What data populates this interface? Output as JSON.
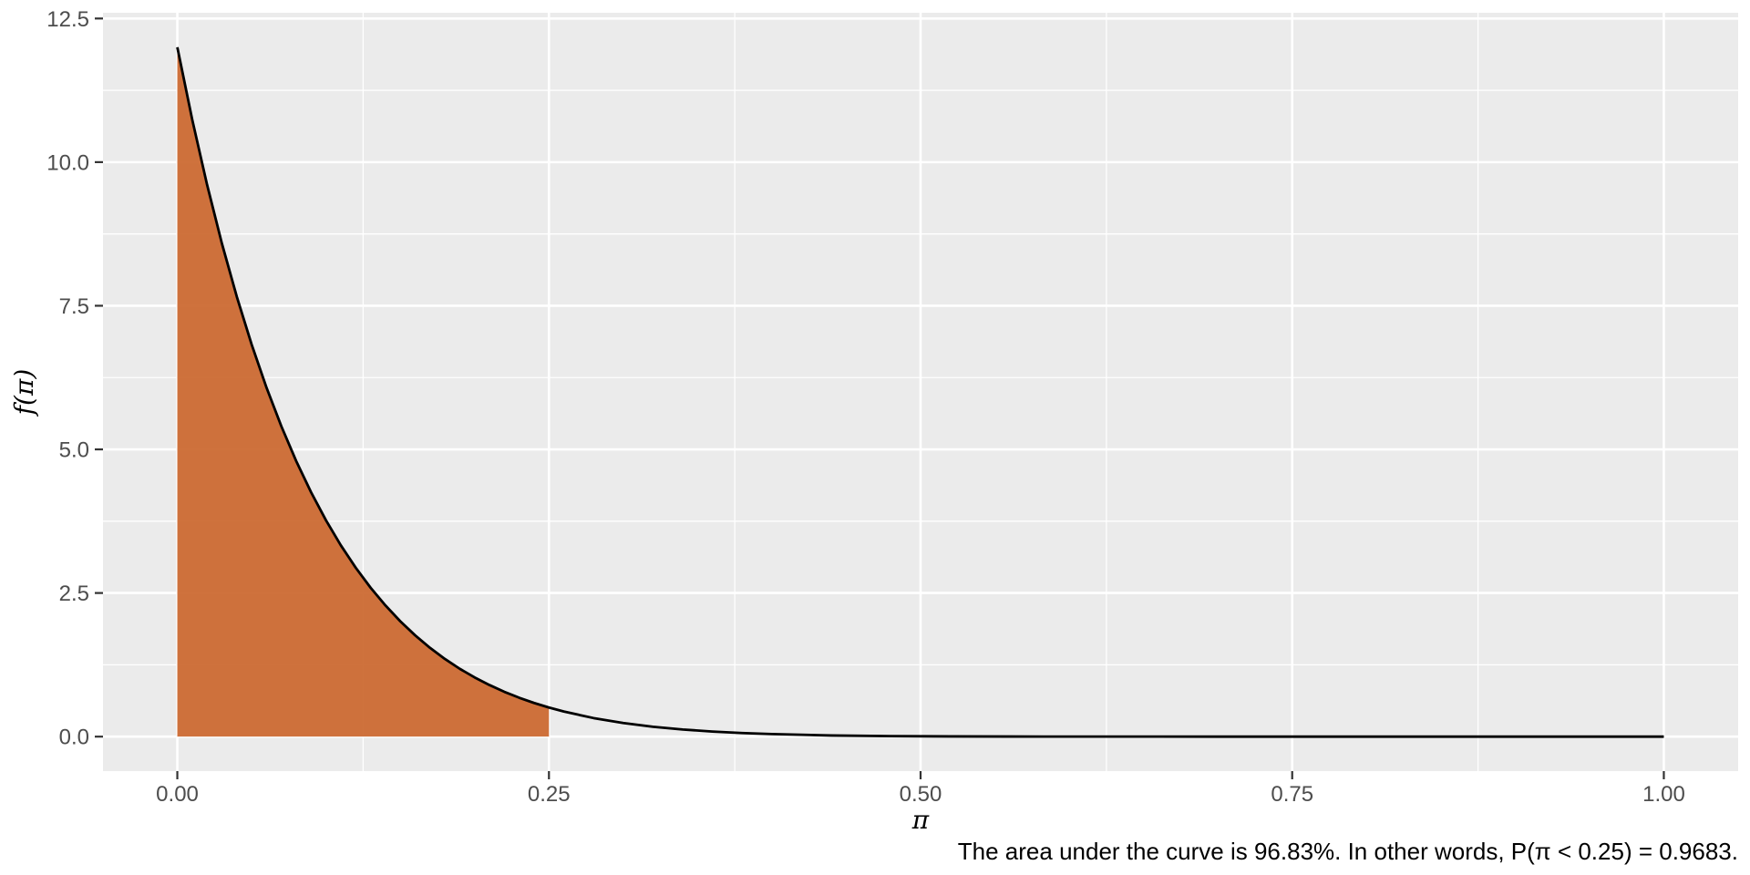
{
  "caption": {
    "text": "The area under the curve is 96.83%. In other words, P(π < 0.25) = 0.9683."
  },
  "chart_data": {
    "type": "area",
    "title": "",
    "xlabel": "π",
    "ylabel": "f(π)",
    "xlim": [
      -0.05,
      1.05
    ],
    "ylim": [
      -0.6,
      12.6
    ],
    "grid": true,
    "legend": "none",
    "x_ticks": {
      "values": [
        0,
        0.25,
        0.5,
        0.75,
        1
      ],
      "labels": [
        "0.00",
        "0.25",
        "0.50",
        "0.75",
        "1.00"
      ]
    },
    "y_ticks": {
      "values": [
        0,
        2.5,
        5,
        7.5,
        10,
        12.5
      ],
      "labels": [
        "0.0",
        "2.5",
        "5.0",
        "7.5",
        "10.0",
        "12.5"
      ]
    },
    "x_minor_ticks": [
      0.125,
      0.375,
      0.625,
      0.875
    ],
    "y_minor_ticks": [
      1.25,
      3.75,
      6.25,
      8.75,
      11.25
    ],
    "curve": {
      "color": "#000000",
      "width": 2.8,
      "points": [
        [
          0,
          12
        ],
        [
          0.01,
          10.744
        ],
        [
          0.02,
          9.609
        ],
        [
          0.03,
          8.583
        ],
        [
          0.04,
          7.659
        ],
        [
          0.05,
          6.826
        ],
        [
          0.06,
          6.075
        ],
        [
          0.07,
          5.401
        ],
        [
          0.08,
          4.795
        ],
        [
          0.09,
          4.253
        ],
        [
          0.1,
          3.766
        ],
        [
          0.11,
          3.33
        ],
        [
          0.12,
          2.941
        ],
        [
          0.13,
          2.593
        ],
        [
          0.14,
          2.284
        ],
        [
          0.15,
          2.008
        ],
        [
          0.16,
          1.763
        ],
        [
          0.17,
          1.545
        ],
        [
          0.18,
          1.352
        ],
        [
          0.19,
          1.181
        ],
        [
          0.2,
          1.031
        ],
        [
          0.21,
          0.898
        ],
        [
          0.22,
          0.78
        ],
        [
          0.23,
          0.677
        ],
        [
          0.24,
          0.586
        ],
        [
          0.25,
          0.507
        ],
        [
          0.26,
          0.437
        ],
        [
          0.28,
          0.323
        ],
        [
          0.3,
          0.237
        ],
        [
          0.32,
          0.172
        ],
        [
          0.34,
          0.124
        ],
        [
          0.36,
          0.088
        ],
        [
          0.38,
          0.062
        ],
        [
          0.4,
          0.044
        ],
        [
          0.44,
          0.02
        ],
        [
          0.48,
          0.009
        ],
        [
          0.52,
          0.004
        ],
        [
          0.56,
          0.002
        ],
        [
          0.6,
          0.001
        ],
        [
          0.7,
          0
        ],
        [
          0.8,
          0
        ],
        [
          0.9,
          0
        ],
        [
          1,
          0
        ]
      ]
    },
    "shaded_region": {
      "x_from": 0,
      "x_to": 0.25,
      "fill": "#CC6A33",
      "fill_opacity": 0.95,
      "probability": 0.9683,
      "percent_label": "96.83%"
    },
    "style": {
      "panel_bg": "#EBEBEB",
      "grid_major_color": "#FFFFFF",
      "grid_minor_color": "#FFFFFF",
      "grid_major_width": 2.6,
      "grid_minor_width": 1.3,
      "tick_color": "#333333",
      "tick_label_color": "#4D4D4D",
      "tick_label_size": 24,
      "axis_title_color": "#000000"
    }
  }
}
